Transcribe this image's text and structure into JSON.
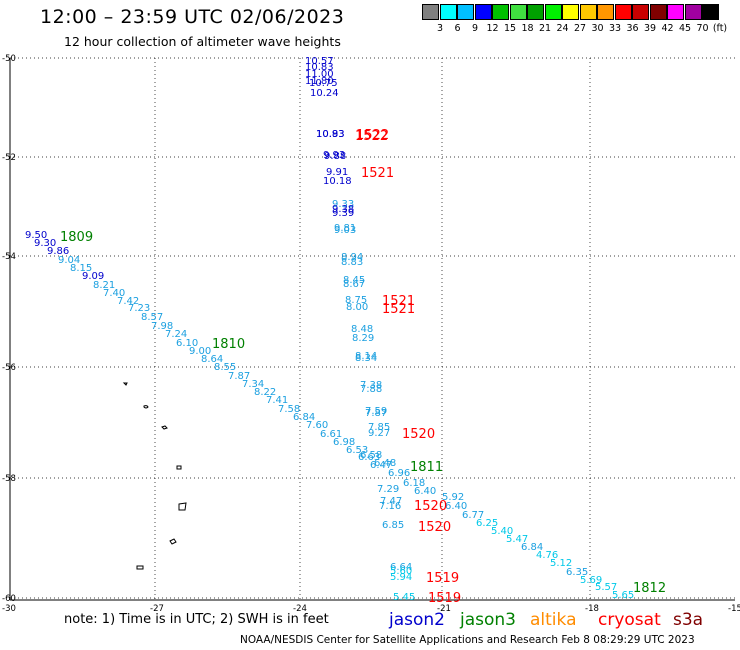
{
  "title": "12:00 – 23:59 UTC 02/06/2023",
  "subtitle": "12 hour collection of altimeter wave heights",
  "colorbar": {
    "unit_label": "(ft)",
    "labels": [
      "3",
      "6",
      "9",
      "12",
      "15",
      "18",
      "21",
      "24",
      "27",
      "30",
      "33",
      "36",
      "39",
      "42",
      "45",
      "70"
    ],
    "colors": [
      "#808080",
      "#00ffff",
      "#00bfff",
      "#0000ff",
      "#00c000",
      "#40e040",
      "#00a000",
      "#00f000",
      "#ffff00",
      "#ffc800",
      "#ff9600",
      "#ff0000",
      "#c80000",
      "#800000",
      "#ff00ff",
      "#a000a0",
      "#000000"
    ]
  },
  "axes": {
    "y_labels": [
      "-50",
      "-52",
      "-54",
      "-56",
      "-58",
      "-60"
    ],
    "x_labels": [
      "-30",
      "-27",
      "-24",
      "-21",
      "-18",
      "-15"
    ]
  },
  "track_colors": {
    "jason2": "#0000cc",
    "jason3": "#008000",
    "altika": "#ff8c00",
    "cryosat": "#ff0000",
    "s3a": "#800000",
    "light": "#1ca0e0",
    "cyan": "#00c8e8"
  },
  "wave_labels": [
    {
      "t": "10.57",
      "c": "jason2"
    },
    {
      "t": "10.83",
      "c": "jason2"
    },
    {
      "t": "11.00",
      "c": "jason2"
    },
    {
      "t": "11.80",
      "c": "jason2"
    },
    {
      "t": "10.75",
      "c": "jason2"
    },
    {
      "t": "10.24",
      "c": "jason2"
    },
    {
      "t": "10.83",
      "c": "jason2"
    },
    {
      "t": "10.93",
      "c": "jason2"
    },
    {
      "t": "9.93",
      "c": "jason2"
    },
    {
      "t": "9.88",
      "c": "jason2"
    },
    {
      "t": "9.91",
      "c": "jason2"
    },
    {
      "t": "10.18",
      "c": "jason2"
    },
    {
      "t": "9.33",
      "c": "light"
    },
    {
      "t": "9.38",
      "c": "jason2"
    },
    {
      "t": "9.39",
      "c": "jason2"
    },
    {
      "t": "9.81",
      "c": "light"
    },
    {
      "t": "9.03",
      "c": "light"
    },
    {
      "t": "8.94",
      "c": "light"
    },
    {
      "t": "8.83",
      "c": "light"
    },
    {
      "t": "8.45",
      "c": "light"
    },
    {
      "t": "8.67",
      "c": "light"
    },
    {
      "t": "8.75",
      "c": "light"
    },
    {
      "t": "8.00",
      "c": "light"
    },
    {
      "t": "8.48",
      "c": "light"
    },
    {
      "t": "8.29",
      "c": "light"
    },
    {
      "t": "8.14",
      "c": "light"
    },
    {
      "t": "8.34",
      "c": "light"
    },
    {
      "t": "7.38",
      "c": "light"
    },
    {
      "t": "7.88",
      "c": "light"
    },
    {
      "t": "7.59",
      "c": "light"
    },
    {
      "t": "7.87",
      "c": "light"
    },
    {
      "t": "7.85",
      "c": "light"
    },
    {
      "t": "9.27",
      "c": "light"
    },
    {
      "t": "9.50",
      "c": "jason2"
    },
    {
      "t": "9.30",
      "c": "jason2"
    },
    {
      "t": "9.86",
      "c": "jason2"
    },
    {
      "t": "9.04",
      "c": "light"
    },
    {
      "t": "8.15",
      "c": "light"
    },
    {
      "t": "9.09",
      "c": "jason2"
    },
    {
      "t": "8.21",
      "c": "light"
    },
    {
      "t": "7.40",
      "c": "light"
    },
    {
      "t": "7.42",
      "c": "light"
    },
    {
      "t": "7.23",
      "c": "light"
    },
    {
      "t": "8.57",
      "c": "light"
    },
    {
      "t": "7.98",
      "c": "light"
    },
    {
      "t": "7.24",
      "c": "light"
    },
    {
      "t": "6.10",
      "c": "light"
    },
    {
      "t": "9.00",
      "c": "light"
    },
    {
      "t": "8.64",
      "c": "light"
    },
    {
      "t": "8.55",
      "c": "light"
    },
    {
      "t": "7.87",
      "c": "light"
    },
    {
      "t": "7.34",
      "c": "light"
    },
    {
      "t": "8.22",
      "c": "light"
    },
    {
      "t": "7.41",
      "c": "light"
    },
    {
      "t": "7.58",
      "c": "light"
    },
    {
      "t": "6.84",
      "c": "light"
    },
    {
      "t": "7.60",
      "c": "light"
    },
    {
      "t": "6.61",
      "c": "light"
    },
    {
      "t": "6.98",
      "c": "light"
    },
    {
      "t": "6.53",
      "c": "light"
    },
    {
      "t": "6.63",
      "c": "light"
    },
    {
      "t": "6.58",
      "c": "light"
    },
    {
      "t": "6.47",
      "c": "light"
    },
    {
      "t": "6.48",
      "c": "light"
    },
    {
      "t": "6.96",
      "c": "light"
    },
    {
      "t": "6.18",
      "c": "light"
    },
    {
      "t": "7.29",
      "c": "light"
    },
    {
      "t": "6.40",
      "c": "light"
    },
    {
      "t": "5.92",
      "c": "light"
    },
    {
      "t": "7.47",
      "c": "light"
    },
    {
      "t": "7.16",
      "c": "light"
    },
    {
      "t": "6.40",
      "c": "light"
    },
    {
      "t": "6.77",
      "c": "light"
    },
    {
      "t": "6.25",
      "c": "cyan"
    },
    {
      "t": "5.40",
      "c": "cyan"
    },
    {
      "t": "6.85",
      "c": "light"
    },
    {
      "t": "5.47",
      "c": "cyan"
    },
    {
      "t": "6.84",
      "c": "light"
    },
    {
      "t": "4.76",
      "c": "cyan"
    },
    {
      "t": "5.12",
      "c": "cyan"
    },
    {
      "t": "6.35",
      "c": "light"
    },
    {
      "t": "5.69",
      "c": "cyan"
    },
    {
      "t": "5.57",
      "c": "cyan"
    },
    {
      "t": "5.65",
      "c": "cyan"
    },
    {
      "t": "6.64",
      "c": "light"
    },
    {
      "t": "5.60",
      "c": "cyan"
    },
    {
      "t": "5.94",
      "c": "cyan"
    },
    {
      "t": "5.45",
      "c": "cyan"
    }
  ],
  "time_labels": [
    {
      "t": "1522",
      "c": "cryosat"
    },
    {
      "t": "1522",
      "c": "cryosat"
    },
    {
      "t": "1521",
      "c": "cryosat"
    },
    {
      "t": "1809",
      "c": "jason3"
    },
    {
      "t": "1521",
      "c": "cryosat"
    },
    {
      "t": "1521",
      "c": "cryosat"
    },
    {
      "t": "1810",
      "c": "jason3"
    },
    {
      "t": "1520",
      "c": "cryosat"
    },
    {
      "t": "1811",
      "c": "jason3"
    },
    {
      "t": "1520",
      "c": "cryosat"
    },
    {
      "t": "1520",
      "c": "cryosat"
    },
    {
      "t": "1519",
      "c": "cryosat"
    },
    {
      "t": "1519",
      "c": "cryosat"
    },
    {
      "t": "1812",
      "c": "jason3"
    }
  ],
  "note": "note: 1) Time is in UTC; 2) SWH is in feet",
  "legend": [
    {
      "name": "jason2",
      "color": "#0000cc"
    },
    {
      "name": "jason3",
      "color": "#008000"
    },
    {
      "name": "altika",
      "color": "#ff8c00"
    },
    {
      "name": "cryosat",
      "color": "#ff0000"
    },
    {
      "name": "s3a",
      "color": "#800000"
    }
  ],
  "credit": "NOAA/NESDIS Center for Satellite Applications and Research    Feb  8 08:29:29 UTC 2023"
}
